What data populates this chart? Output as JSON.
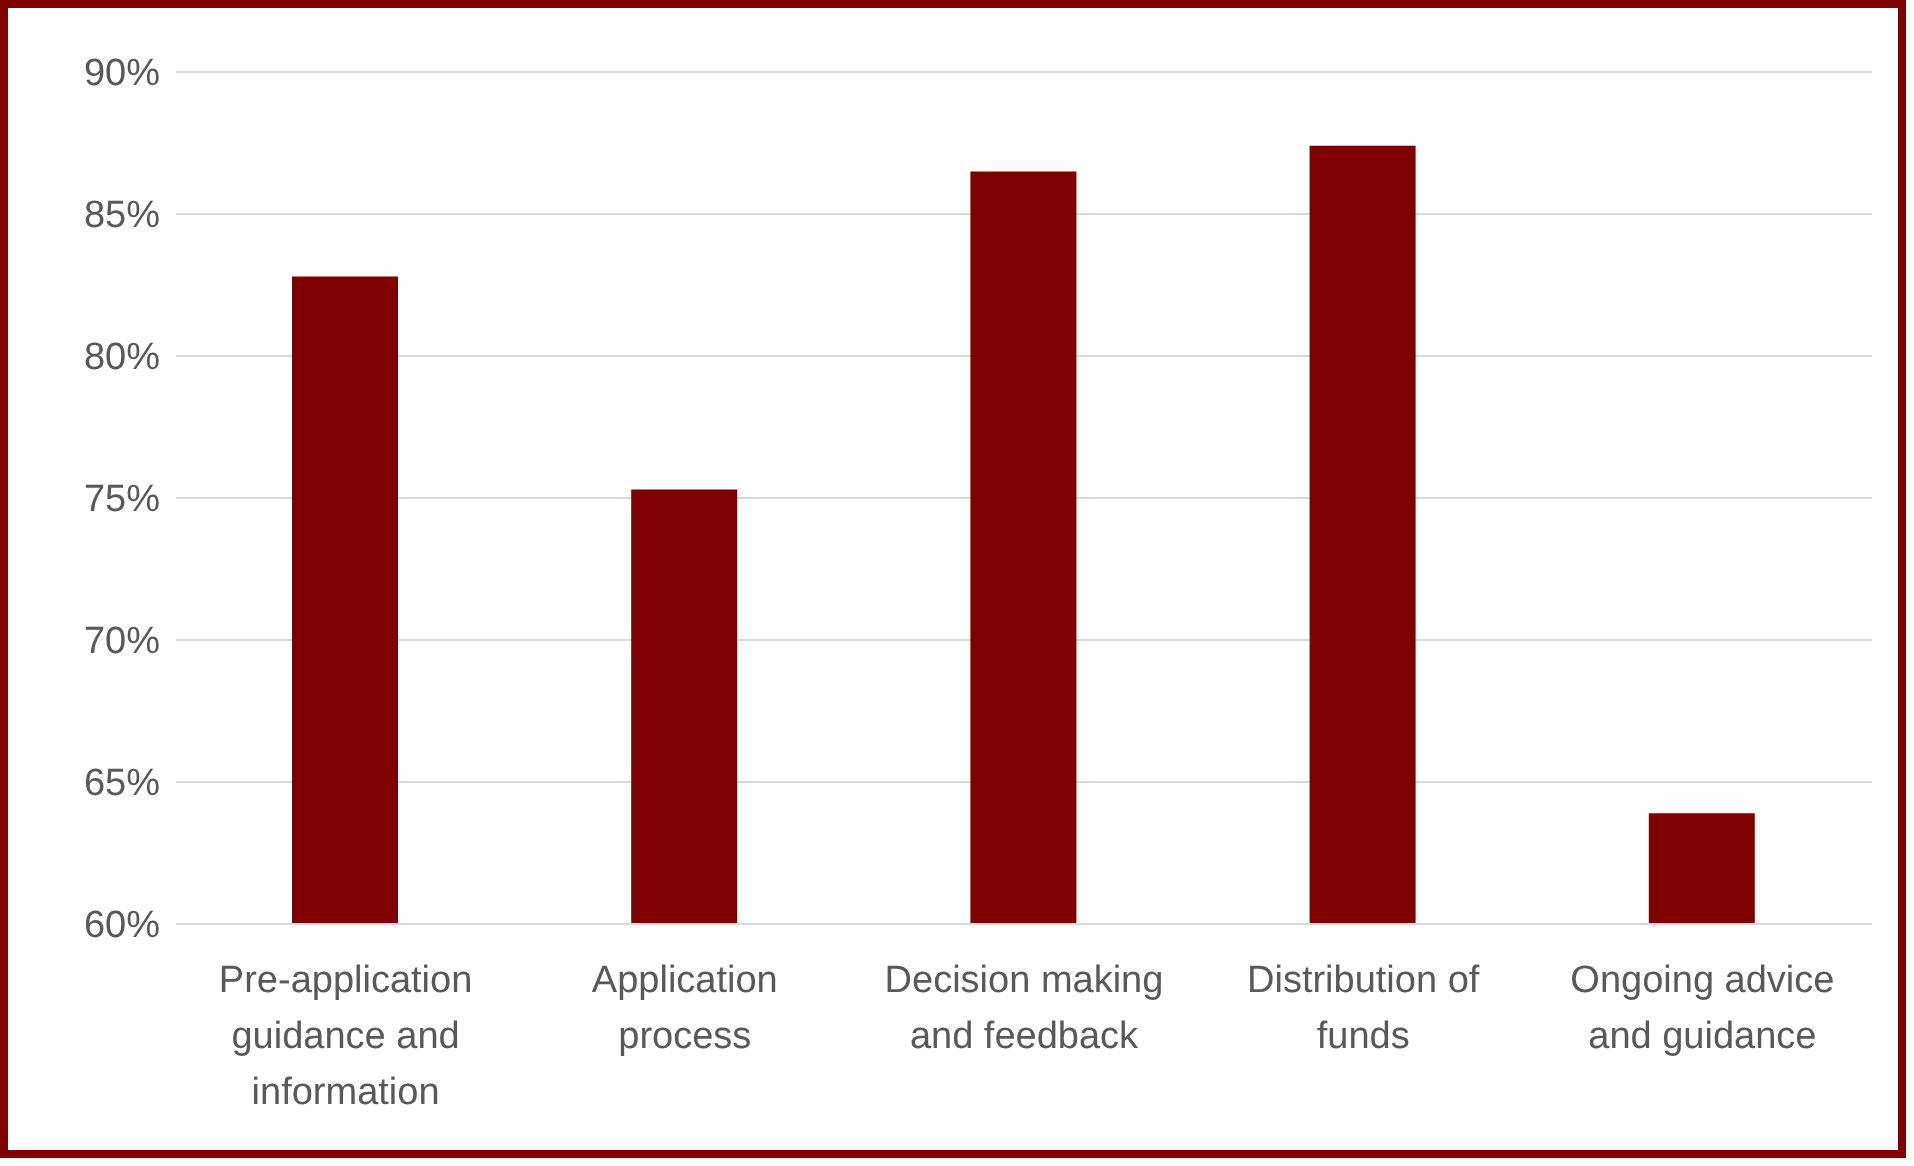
{
  "chart_data": {
    "type": "bar",
    "categories": [
      "Pre-application guidance and information",
      "Application process",
      "Decision making and feedback",
      "Distribution of funds",
      "Ongoing advice and guidance"
    ],
    "values": [
      82.8,
      75.3,
      86.5,
      87.4,
      63.9
    ],
    "color": "#7f0000",
    "ylim": [
      60,
      90
    ],
    "yticks": [
      {
        "value": 60,
        "label": "60%"
      },
      {
        "value": 65,
        "label": "65%"
      },
      {
        "value": 70,
        "label": "70%"
      },
      {
        "value": 75,
        "label": "75%"
      },
      {
        "value": 80,
        "label": "80%"
      },
      {
        "value": 85,
        "label": "85%"
      },
      {
        "value": 90,
        "label": "90%"
      }
    ],
    "grid": "y",
    "legend": false
  }
}
